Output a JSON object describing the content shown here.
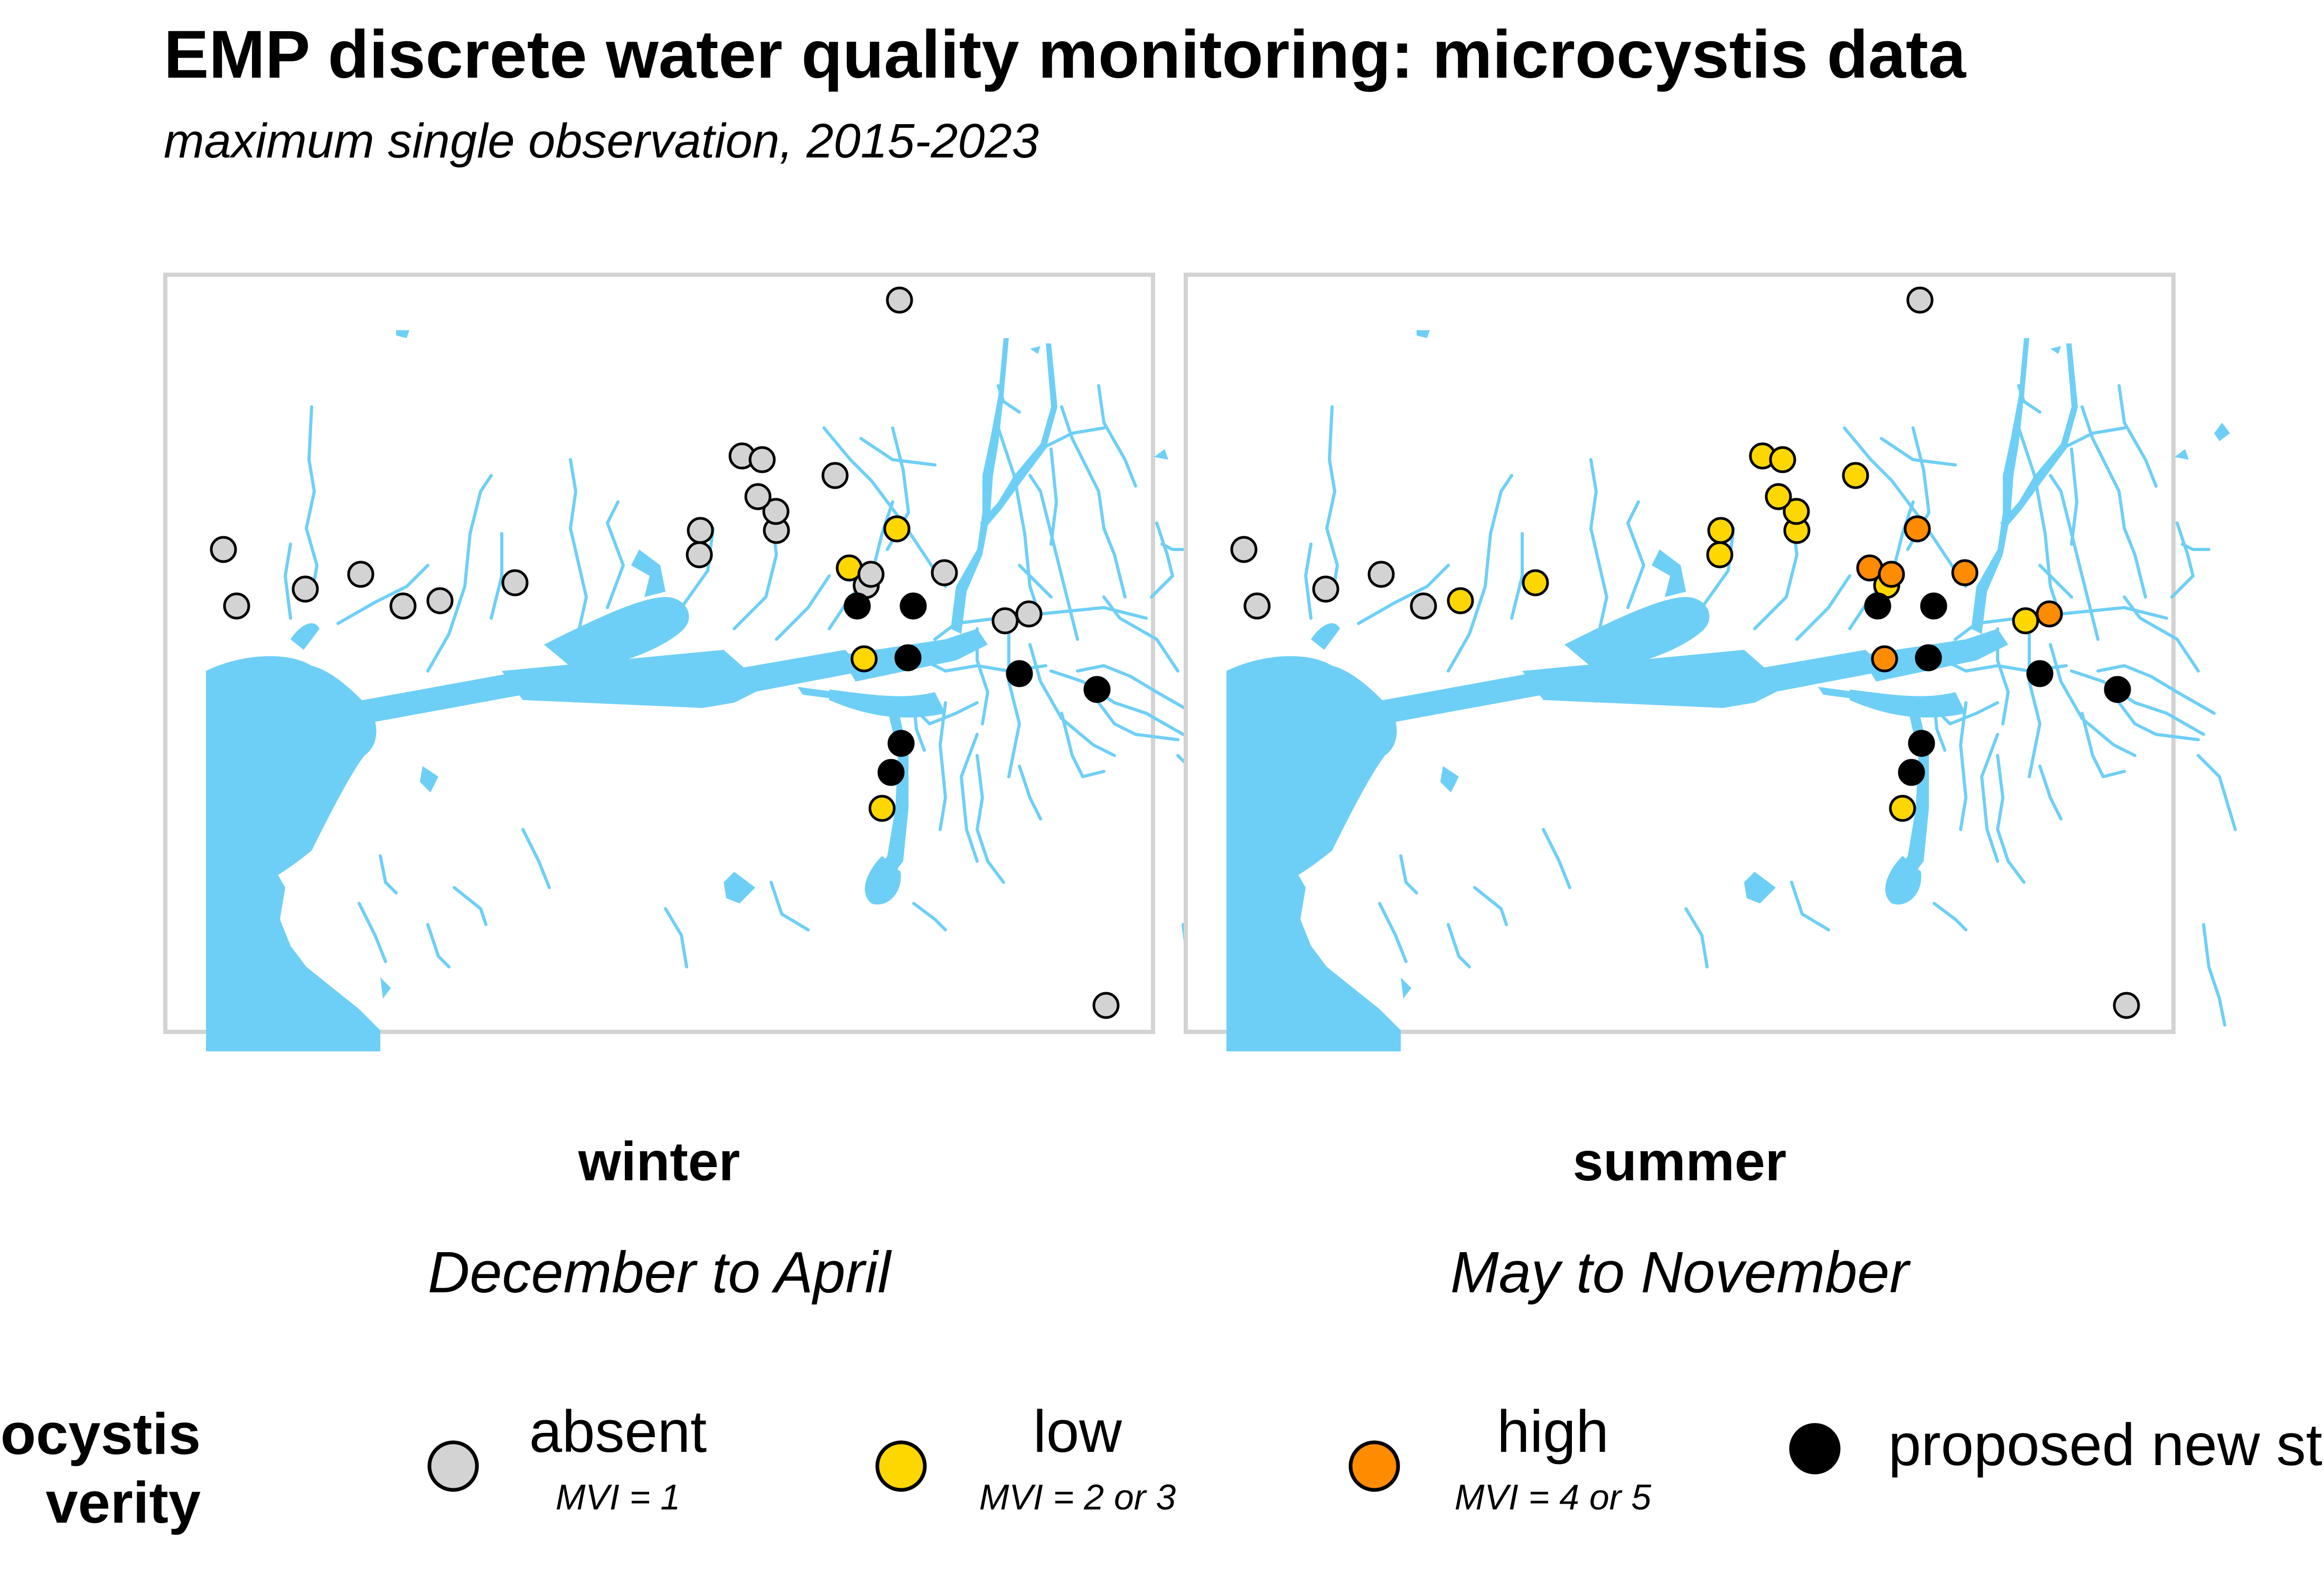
{
  "title": "EMP discrete water quality monitoring: microcystis data",
  "subtitle": "maximum single observation, 2015-2023",
  "colors": {
    "water": "#6ECFF6",
    "absent": "#D3D3D3",
    "low": "#FFD700",
    "high": "#FF8C00",
    "proposed": "#000000",
    "panel_border": "#D3D3D3"
  },
  "panels": [
    {
      "label": "winter",
      "sublabel": "December to April"
    },
    {
      "label": "summer",
      "sublabel": "May to November"
    }
  ],
  "legend": {
    "title_line1": "ocystis",
    "title_line2": "verity",
    "items": [
      {
        "key": "absent",
        "label": "absent",
        "sub": "MVI = 1"
      },
      {
        "key": "low",
        "label": "low",
        "sub": "MVI = 2 or 3"
      },
      {
        "key": "high",
        "label": "high",
        "sub": "MVI = 4 or 5"
      },
      {
        "key": "proposed",
        "label": "proposed new st",
        "sub": ""
      }
    ]
  },
  "stations": [
    {
      "id": "s01",
      "winter": "absent",
      "summer": "absent"
    },
    {
      "id": "s02",
      "winter": "absent",
      "summer": "absent"
    },
    {
      "id": "s03",
      "winter": "absent",
      "summer": "absent"
    },
    {
      "id": "s04",
      "winter": "absent",
      "summer": "absent"
    },
    {
      "id": "s05",
      "winter": "absent",
      "summer": "absent"
    },
    {
      "id": "s06",
      "winter": "absent",
      "summer": "low"
    },
    {
      "id": "s07",
      "winter": "absent",
      "summer": "low"
    },
    {
      "id": "s08",
      "winter": "absent",
      "summer": "low"
    },
    {
      "id": "s09",
      "winter": "absent",
      "summer": "low"
    },
    {
      "id": "s10",
      "winter": "absent",
      "summer": "low"
    },
    {
      "id": "s11",
      "winter": "absent",
      "summer": "low"
    },
    {
      "id": "s12",
      "winter": "absent",
      "summer": "low"
    },
    {
      "id": "s13",
      "winter": "absent",
      "summer": "low"
    },
    {
      "id": "s14",
      "winter": "absent",
      "summer": "low"
    },
    {
      "id": "s15",
      "winter": "absent",
      "summer": "low"
    },
    {
      "id": "s16",
      "winter": "absent",
      "summer": "absent"
    },
    {
      "id": "s17",
      "winter": "absent",
      "summer": "low"
    },
    {
      "id": "s18",
      "winter": "low",
      "summer": "high"
    },
    {
      "id": "s19",
      "winter": "low",
      "summer": "high"
    },
    {
      "id": "s20",
      "winter": "proposed",
      "summer": "proposed"
    },
    {
      "id": "s21",
      "winter": "absent",
      "summer": "high"
    },
    {
      "id": "s22",
      "winter": "proposed",
      "summer": "proposed"
    },
    {
      "id": "s23",
      "winter": "absent",
      "summer": "high"
    },
    {
      "id": "s24",
      "winter": "absent",
      "summer": "high"
    },
    {
      "id": "s25",
      "winter": "low",
      "summer": "high"
    },
    {
      "id": "s26",
      "winter": "proposed",
      "summer": "proposed"
    },
    {
      "id": "s27",
      "winter": "proposed",
      "summer": "proposed"
    },
    {
      "id": "s28",
      "winter": "proposed",
      "summer": "proposed"
    },
    {
      "id": "s29",
      "winter": "low",
      "summer": "low"
    },
    {
      "id": "s30",
      "winter": "proposed",
      "summer": "proposed"
    },
    {
      "id": "s31",
      "winter": "proposed",
      "summer": "proposed"
    },
    {
      "id": "s32",
      "winter": "absent",
      "summer": "absent"
    },
    {
      "id": "s33",
      "winter": "absent",
      "summer": "low"
    }
  ]
}
